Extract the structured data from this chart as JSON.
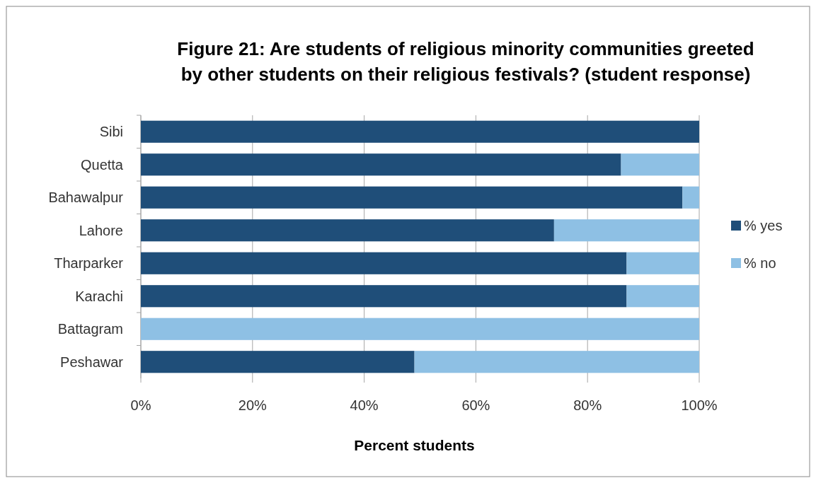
{
  "chart_data": {
    "type": "bar",
    "orientation": "horizontal",
    "stacked": true,
    "title": "Figure 21: Are students of religious minority communities greeted by other students on their religious festivals? (student response)",
    "xlabel": "Percent students",
    "categories": [
      "Sibi",
      "Quetta",
      "Bahawalpur",
      "Lahore",
      "Tharparker",
      "Karachi",
      "Battagram",
      "Peshawar"
    ],
    "series": [
      {
        "name": "% yes",
        "color": "#1f4e79",
        "values": [
          100,
          86,
          97,
          74,
          87,
          87,
          0,
          49
        ]
      },
      {
        "name": "% no",
        "color": "#8ec0e4",
        "values": [
          0,
          14,
          3,
          26,
          13,
          13,
          100,
          51
        ]
      }
    ],
    "xlim": [
      0,
      100
    ],
    "xticks": [
      {
        "value": 0,
        "label": "0%"
      },
      {
        "value": 20,
        "label": "20%"
      },
      {
        "value": 40,
        "label": "40%"
      },
      {
        "value": 60,
        "label": "60%"
      },
      {
        "value": 80,
        "label": "80%"
      },
      {
        "value": 100,
        "label": "100%"
      }
    ],
    "grid": "x",
    "legend": "right"
  }
}
